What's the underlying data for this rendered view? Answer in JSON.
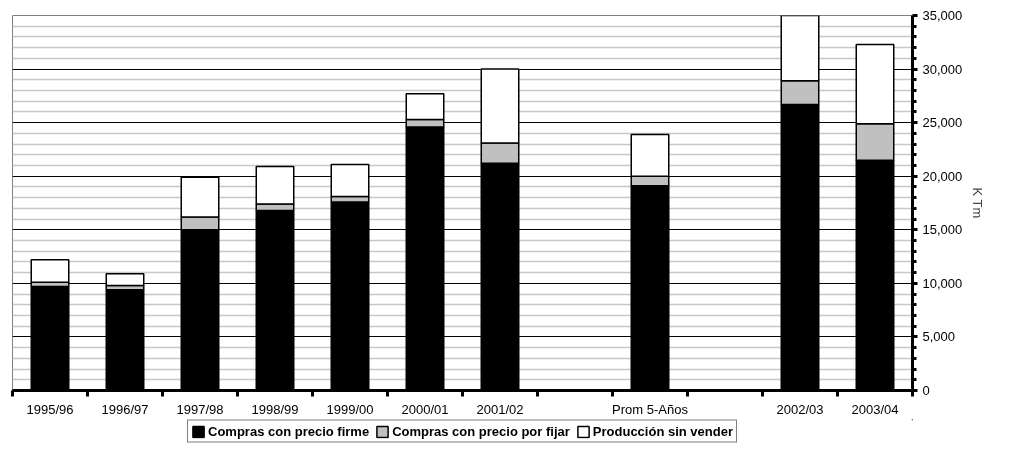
{
  "chart_data": {
    "type": "bar",
    "stacked": true,
    "ylabel": "K Tm",
    "categories": [
      "1995/96",
      "1996/97",
      "1997/98",
      "1998/99",
      "1999/00",
      "2000/01",
      "2001/02",
      null,
      "Prom 5-Años",
      null,
      "2002/03",
      "2003/04"
    ],
    "series": [
      {
        "name": "Compras con precio firme",
        "color": "#000000",
        "values": [
          9700,
          9400,
          15000,
          16800,
          17600,
          24600,
          21200,
          null,
          19100,
          null,
          26700,
          21500
        ]
      },
      {
        "name": "Compras con precio por fijar",
        "color": "#c0c0c0",
        "values": [
          400,
          400,
          1200,
          600,
          500,
          700,
          1900,
          null,
          900,
          null,
          2200,
          3400
        ]
      },
      {
        "name": "Producción sin vender",
        "color": "#ffffff",
        "values": [
          2100,
          1100,
          3700,
          3500,
          3000,
          2400,
          6900,
          null,
          3900,
          null,
          6100,
          7400
        ]
      }
    ],
    "ylim": [
      0,
      35000
    ],
    "yticks": [
      0,
      {
        "value": 1000,
        "label": null
      },
      {
        "value": 2000,
        "label": null
      },
      {
        "value": 3000,
        "label": null
      },
      {
        "value": 4000,
        "label": null
      },
      {
        "value": 5000,
        "label": "5,000"
      },
      {
        "value": 6000,
        "label": null
      },
      {
        "value": 7000,
        "label": null
      },
      {
        "value": 8000,
        "label": null
      },
      {
        "value": 9000,
        "label": null
      },
      {
        "value": 10000,
        "label": "10,000"
      },
      {
        "value": 11000,
        "label": null
      },
      {
        "value": 12000,
        "label": null
      },
      {
        "value": 13000,
        "label": null
      },
      {
        "value": 14000,
        "label": null
      },
      {
        "value": 15000,
        "label": "15,000"
      },
      {
        "value": 16000,
        "label": null
      },
      {
        "value": 17000,
        "label": null
      },
      {
        "value": 18000,
        "label": null
      },
      {
        "value": 19000,
        "label": null
      },
      {
        "value": 20000,
        "label": "20,000"
      },
      {
        "value": 21000,
        "label": null
      },
      {
        "value": 22000,
        "label": null
      },
      {
        "value": 23000,
        "label": null
      },
      {
        "value": 24000,
        "label": null
      },
      {
        "value": 25000,
        "label": "25,000"
      },
      {
        "value": 26000,
        "label": null
      },
      {
        "value": 27000,
        "label": null
      },
      {
        "value": 28000,
        "label": null
      },
      {
        "value": 29000,
        "label": null
      },
      {
        "value": 30000,
        "label": "30,000"
      },
      {
        "value": 31000,
        "label": null
      },
      {
        "value": 32000,
        "label": null
      },
      {
        "value": 33000,
        "label": null
      },
      {
        "value": 34000,
        "label": null
      },
      {
        "value": 35000,
        "label": "35,000"
      }
    ],
    "grid": "y",
    "legend": "bottom"
  }
}
